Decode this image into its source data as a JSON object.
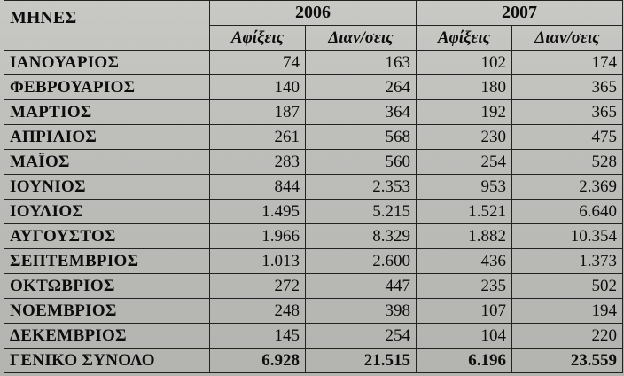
{
  "table": {
    "header": {
      "months_label": "ΜΗΝΕΣ",
      "years": [
        "2006",
        "2007"
      ],
      "sub_headers": [
        "Αφίξεις",
        "Διαν/σεις",
        "Αφίξεις",
        "Διαν/σεις"
      ]
    },
    "rows": [
      {
        "month": "ΙΑΝΟΥΑΡΙΟΣ",
        "values": [
          "74",
          "163",
          "102",
          "174"
        ]
      },
      {
        "month": "ΦΕΒΡΟΥΑΡΙΟΣ",
        "values": [
          "140",
          "264",
          "180",
          "365"
        ]
      },
      {
        "month": "ΜΑΡΤΙΟΣ",
        "values": [
          "187",
          "364",
          "192",
          "365"
        ]
      },
      {
        "month": "ΑΠΡΙΛΙΟΣ",
        "values": [
          "261",
          "568",
          "230",
          "475"
        ]
      },
      {
        "month": "ΜΑΪΟΣ",
        "values": [
          "283",
          "560",
          "254",
          "528"
        ]
      },
      {
        "month": "ΙΟΥΝΙΟΣ",
        "values": [
          "844",
          "2.353",
          "953",
          "2.369"
        ]
      },
      {
        "month": "ΙΟΥΛΙΟΣ",
        "values": [
          "1.495",
          "5.215",
          "1.521",
          "6.640"
        ]
      },
      {
        "month": "ΑΥΓΟΥΣΤΟΣ",
        "values": [
          "1.966",
          "8.329",
          "1.882",
          "10.354"
        ]
      },
      {
        "month": "ΣΕΠΤΕΜΒΡΙΟΣ",
        "values": [
          "1.013",
          "2.600",
          "436",
          "1.373"
        ]
      },
      {
        "month": "ΟΚΤΩΒΡΙΟΣ",
        "values": [
          "272",
          "447",
          "235",
          "502"
        ]
      },
      {
        "month": "ΝΟΕΜΒΡΙΟΣ",
        "values": [
          "248",
          "398",
          "107",
          "194"
        ]
      },
      {
        "month": "ΔΕΚΕΜΒΡΙΟΣ",
        "values": [
          "145",
          "254",
          "104",
          "220"
        ]
      }
    ],
    "total": {
      "label": "ΓΕΝΙΚΟ ΣΥΝΟΛΟ",
      "values": [
        "6.928",
        "21.515",
        "6.196",
        "23.559"
      ]
    }
  }
}
